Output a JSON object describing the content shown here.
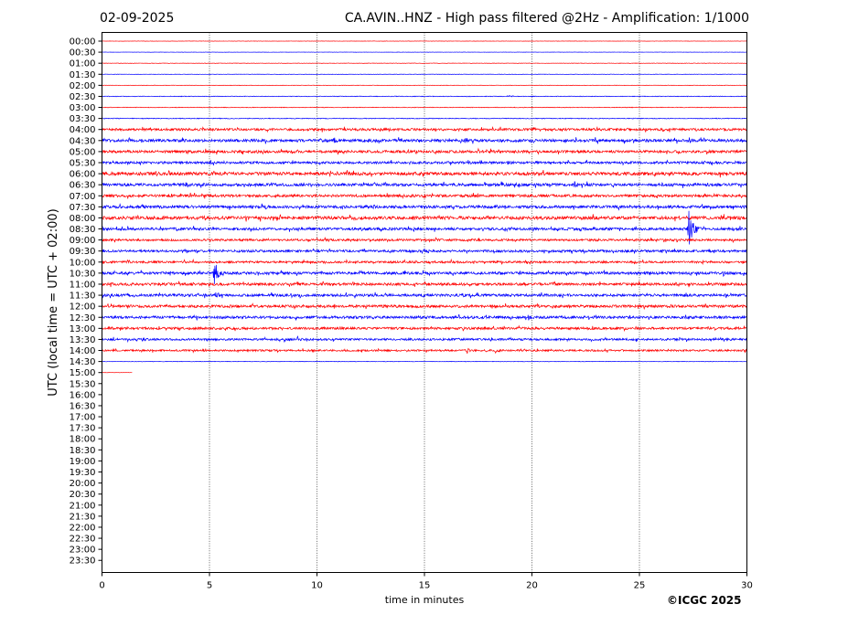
{
  "header": {
    "date": "02-09-2025",
    "title": "CA.AVIN..HNZ - High pass filtered @2Hz - Amplification: 1/1000"
  },
  "footer": {
    "copyright": "©ICGC 2025"
  },
  "colors": {
    "red_trace": "#ff0000",
    "blue_trace": "#0000ff",
    "axis": "#000000",
    "grid": "#000000"
  },
  "chart_data": {
    "type": "line",
    "xlabel": "time in minutes",
    "ylabel": "UTC (local time = UTC + 02:00)",
    "xlim": [
      0,
      30
    ],
    "x_ticks": [
      0,
      5,
      10,
      15,
      20,
      25,
      30
    ],
    "x_tick_labels": [
      "0",
      "5",
      "10",
      "15",
      "20",
      "25",
      "30"
    ],
    "grid": "vertical dotted lines at 5-minute intervals",
    "row_labels": [
      "00:00",
      "00:30",
      "01:00",
      "01:30",
      "02:00",
      "02:30",
      "03:00",
      "03:30",
      "04:00",
      "04:30",
      "05:00",
      "05:30",
      "06:00",
      "06:30",
      "07:00",
      "07:30",
      "08:00",
      "08:30",
      "09:00",
      "09:30",
      "10:00",
      "10:30",
      "11:00",
      "11:30",
      "12:00",
      "12:30",
      "13:00",
      "13:30",
      "14:00",
      "14:30",
      "15:00",
      "15:30",
      "16:00",
      "16:30",
      "17:00",
      "17:30",
      "18:00",
      "18:30",
      "19:00",
      "19:30",
      "20:00",
      "20:30",
      "21:00",
      "21:30",
      "22:00",
      "22:30",
      "23:00",
      "23:30"
    ],
    "series": [
      {
        "row": "00:00",
        "color": "red",
        "duration_min": 30,
        "noise": 0.02,
        "bursts": []
      },
      {
        "row": "00:30",
        "color": "blue",
        "duration_min": 30,
        "noise": 0.02,
        "bursts": []
      },
      {
        "row": "01:00",
        "color": "red",
        "duration_min": 30,
        "noise": 0.03,
        "bursts": []
      },
      {
        "row": "01:30",
        "color": "blue",
        "duration_min": 30,
        "noise": 0.03,
        "bursts": []
      },
      {
        "row": "02:00",
        "color": "red",
        "duration_min": 30,
        "noise": 0.03,
        "bursts": []
      },
      {
        "row": "02:30",
        "color": "blue",
        "duration_min": 30,
        "noise": 0.05,
        "bursts": [
          {
            "t": 17.0,
            "amp": 0.15
          },
          {
            "t": 18.9,
            "amp": 0.25
          }
        ]
      },
      {
        "row": "03:00",
        "color": "red",
        "duration_min": 30,
        "noise": 0.05,
        "bursts": []
      },
      {
        "row": "03:30",
        "color": "blue",
        "duration_min": 30,
        "noise": 0.06,
        "bursts": []
      },
      {
        "row": "04:00",
        "color": "red",
        "duration_min": 30,
        "noise": 0.18,
        "bursts": [
          {
            "t": 20.0,
            "amp": 0.55
          },
          {
            "t": 26.1,
            "amp": 0.45
          }
        ]
      },
      {
        "row": "04:30",
        "color": "blue",
        "duration_min": 30,
        "noise": 0.22,
        "bursts": [
          {
            "t": 10.8,
            "amp": 0.55
          },
          {
            "t": 16.9,
            "amp": 0.6
          },
          {
            "t": 20.2,
            "amp": 0.4
          }
        ]
      },
      {
        "row": "05:00",
        "color": "red",
        "duration_min": 30,
        "noise": 0.2,
        "bursts": [
          {
            "t": 9.1,
            "amp": 0.45
          },
          {
            "t": 14.2,
            "amp": 0.5
          },
          {
            "t": 26.8,
            "amp": 0.4
          }
        ]
      },
      {
        "row": "05:30",
        "color": "blue",
        "duration_min": 30,
        "noise": 0.18,
        "bursts": [
          {
            "t": 18.9,
            "amp": 0.45
          },
          {
            "t": 28.0,
            "amp": 0.3
          }
        ]
      },
      {
        "row": "06:00",
        "color": "red",
        "duration_min": 30,
        "noise": 0.25,
        "bursts": [
          {
            "t": 2.5,
            "amp": 0.45
          },
          {
            "t": 3.1,
            "amp": 0.5
          },
          {
            "t": 6.0,
            "amp": 0.3
          }
        ]
      },
      {
        "row": "06:30",
        "color": "blue",
        "duration_min": 30,
        "noise": 0.22,
        "bursts": [
          {
            "t": 3.9,
            "amp": 0.6
          },
          {
            "t": 4.7,
            "amp": 0.35
          },
          {
            "t": 22.0,
            "amp": 0.7
          }
        ]
      },
      {
        "row": "07:00",
        "color": "red",
        "duration_min": 30,
        "noise": 0.2,
        "bursts": [
          {
            "t": 14.8,
            "amp": 0.4
          },
          {
            "t": 19.1,
            "amp": 0.3
          }
        ]
      },
      {
        "row": "07:30",
        "color": "blue",
        "duration_min": 30,
        "noise": 0.22,
        "bursts": [
          {
            "t": 7.6,
            "amp": 0.5
          },
          {
            "t": 12.6,
            "amp": 0.45
          }
        ]
      },
      {
        "row": "08:00",
        "color": "red",
        "duration_min": 30,
        "noise": 0.25,
        "bursts": [
          {
            "t": 9.8,
            "amp": 0.35
          },
          {
            "t": 25.3,
            "amp": 0.3
          }
        ]
      },
      {
        "row": "08:30",
        "color": "blue",
        "duration_min": 30,
        "noise": 0.2,
        "bursts": [
          {
            "t": 27.3,
            "amp": 2.9
          }
        ]
      },
      {
        "row": "09:00",
        "color": "red",
        "duration_min": 30,
        "noise": 0.16,
        "bursts": [
          {
            "t": 15.0,
            "amp": 0.35
          },
          {
            "t": 23.0,
            "amp": 0.3
          }
        ]
      },
      {
        "row": "09:30",
        "color": "blue",
        "duration_min": 30,
        "noise": 0.18,
        "bursts": [
          {
            "t": 5.0,
            "amp": 0.4
          }
        ]
      },
      {
        "row": "10:00",
        "color": "red",
        "duration_min": 30,
        "noise": 0.16,
        "bursts": [
          {
            "t": 10.3,
            "amp": 0.35
          },
          {
            "t": 27.9,
            "amp": 0.35
          }
        ]
      },
      {
        "row": "10:30",
        "color": "blue",
        "duration_min": 30,
        "noise": 0.2,
        "bursts": [
          {
            "t": 5.2,
            "amp": 2.6
          },
          {
            "t": 28.9,
            "amp": 0.5
          }
        ]
      },
      {
        "row": "11:00",
        "color": "red",
        "duration_min": 30,
        "noise": 0.2,
        "bursts": [
          {
            "t": 15.2,
            "amp": 0.3
          }
        ]
      },
      {
        "row": "11:30",
        "color": "blue",
        "duration_min": 30,
        "noise": 0.2,
        "bursts": [
          {
            "t": 5.3,
            "amp": 0.6
          },
          {
            "t": 8.8,
            "amp": 0.35
          },
          {
            "t": 16.8,
            "amp": 0.3
          }
        ]
      },
      {
        "row": "12:00",
        "color": "red",
        "duration_min": 30,
        "noise": 0.2,
        "bursts": [
          {
            "t": 21.0,
            "amp": 0.35
          }
        ]
      },
      {
        "row": "12:30",
        "color": "blue",
        "duration_min": 30,
        "noise": 0.2,
        "bursts": [
          {
            "t": 19.8,
            "amp": 0.45
          }
        ]
      },
      {
        "row": "13:00",
        "color": "red",
        "duration_min": 30,
        "noise": 0.18,
        "bursts": [
          {
            "t": 17.8,
            "amp": 0.3
          },
          {
            "t": 28.2,
            "amp": 0.3
          }
        ]
      },
      {
        "row": "13:30",
        "color": "blue",
        "duration_min": 30,
        "noise": 0.16,
        "bursts": [
          {
            "t": 1.9,
            "amp": 0.35
          },
          {
            "t": 9.1,
            "amp": 0.55
          }
        ]
      },
      {
        "row": "14:00",
        "color": "red",
        "duration_min": 30,
        "noise": 0.14,
        "bursts": [
          {
            "t": 17.0,
            "amp": 0.6
          },
          {
            "t": 18.3,
            "amp": 0.4
          }
        ]
      },
      {
        "row": "14:30",
        "color": "blue",
        "duration_min": 30,
        "noise": 0.04,
        "bursts": []
      },
      {
        "row": "15:00",
        "color": "red",
        "duration_min": 1.4,
        "noise": 0.02,
        "bursts": []
      }
    ]
  }
}
